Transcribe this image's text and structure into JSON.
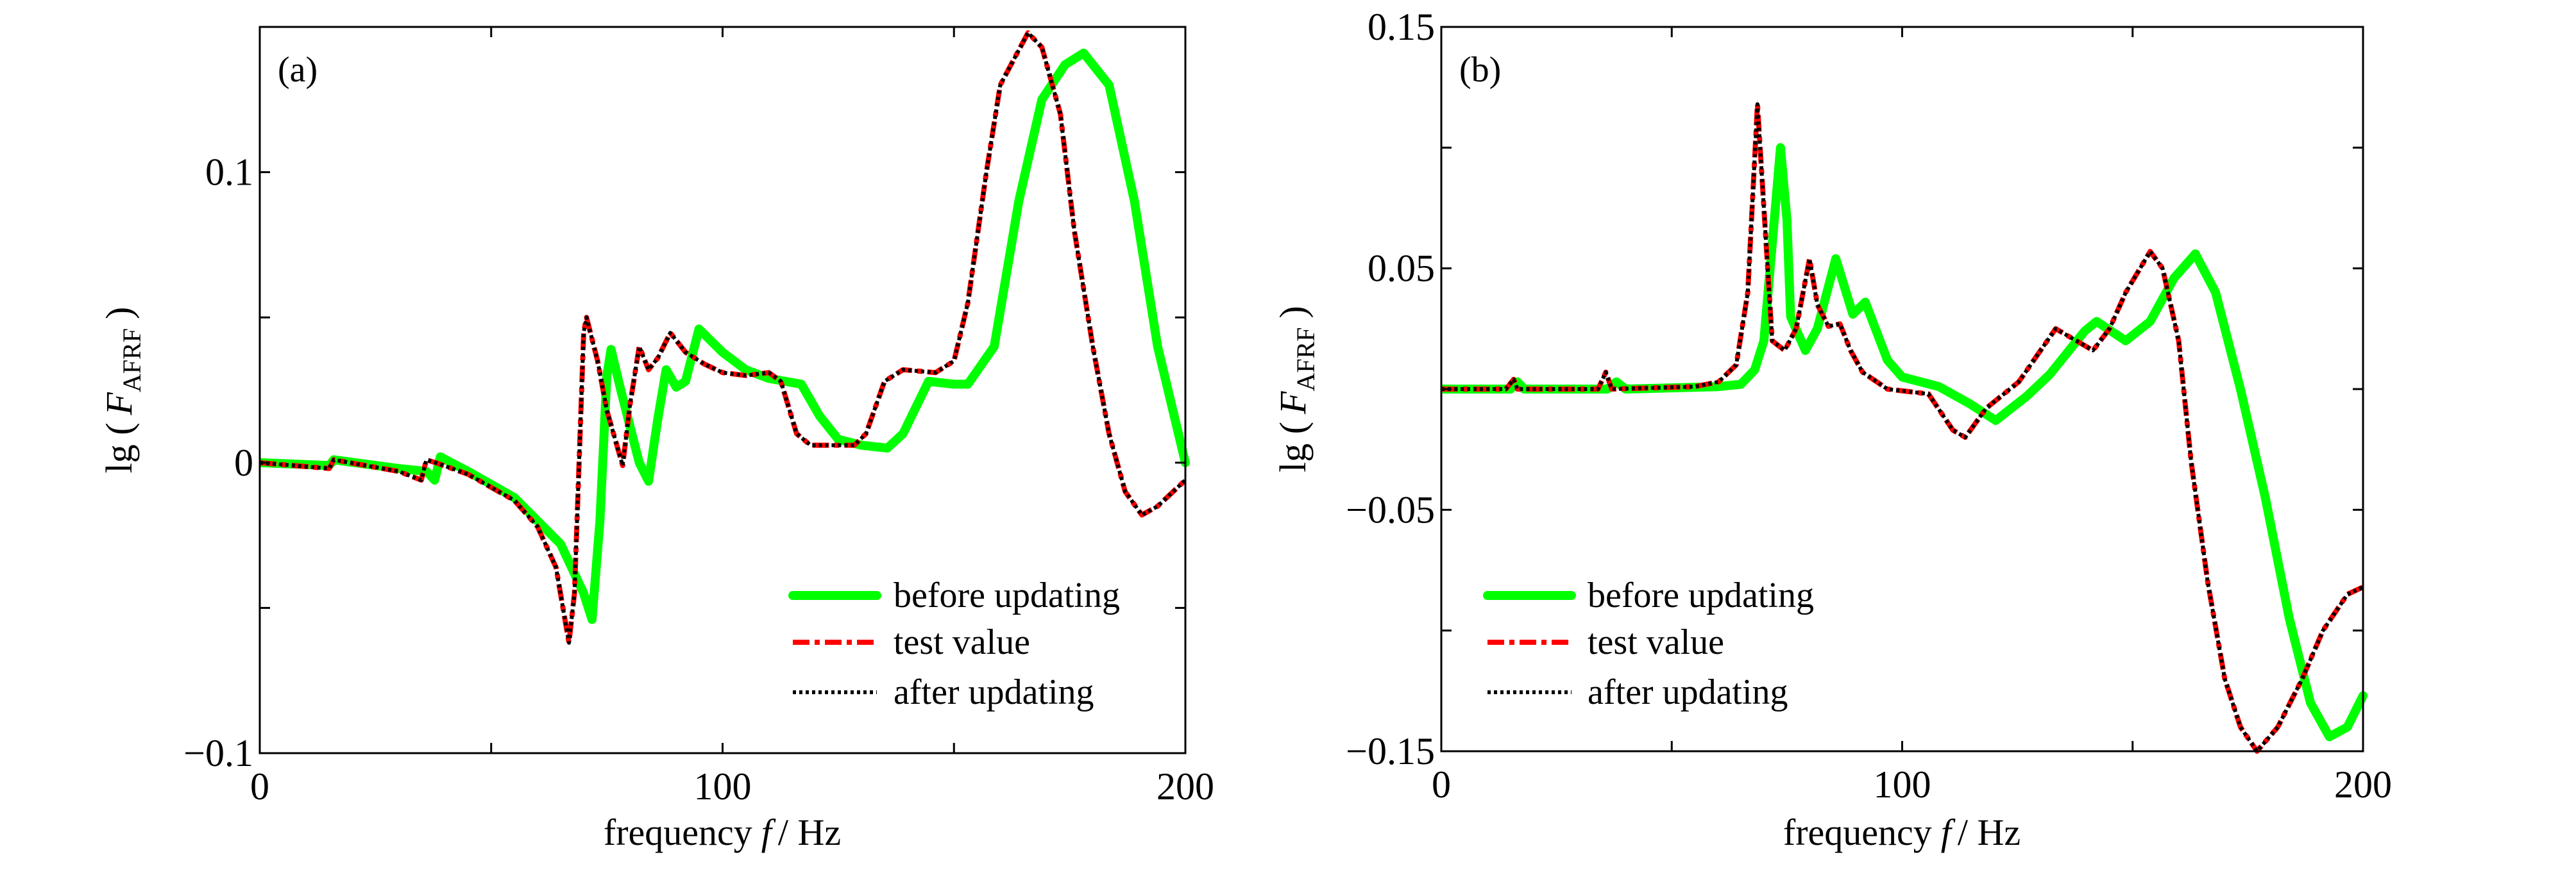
{
  "chart_data": [
    {
      "type": "line",
      "panel_label": "(a)",
      "xlabel": "frequency",
      "xlabel_var": "f",
      "xlabel_unit": "/ Hz",
      "ylabel_prefix": "lg (",
      "ylabel_var": "F",
      "ylabel_sub": "AFRF",
      "ylabel_suffix": ")",
      "xlim": [
        0,
        200
      ],
      "ylim": [
        -0.1,
        0.15
      ],
      "xticks": [
        0,
        50,
        100,
        150,
        200
      ],
      "xtick_labels": [
        "0",
        "",
        "100",
        "",
        "200"
      ],
      "yticks": [
        -0.1,
        -0.05,
        0,
        0.05,
        0.1
      ],
      "ytick_labels": [
        "−0.1",
        "",
        "0",
        "",
        "0.1"
      ],
      "grid": false,
      "legend_position": "bottom-right",
      "series": [
        {
          "name": "before updating",
          "color": "#00ff00",
          "style": "solid",
          "x": [
            0,
            15,
            16,
            30,
            36,
            37.8,
            39,
            45,
            55,
            65,
            70,
            71.8,
            73.5,
            75,
            75.9,
            78,
            82,
            84,
            86,
            87.8,
            90,
            92,
            94.9,
            100,
            105,
            110,
            117,
            121,
            125,
            130,
            135.6,
            139,
            144.5,
            150,
            153,
            158.7,
            164,
            169,
            174,
            178,
            183.5,
            189,
            194,
            200
          ],
          "y": [
            0,
            -0.001,
            0.001,
            -0.002,
            -0.003,
            -0.006,
            0.002,
            -0.003,
            -0.012,
            -0.028,
            -0.045,
            -0.054,
            -0.02,
            0.03,
            0.039,
            0.025,
            0.0,
            -0.0064,
            0.015,
            0.032,
            0.026,
            0.028,
            0.046,
            0.038,
            0.032,
            0.029,
            0.027,
            0.016,
            0.008,
            0.006,
            0.005,
            0.01,
            0.028,
            0.027,
            0.027,
            0.04,
            0.09,
            0.125,
            0.137,
            0.141,
            0.13,
            0.09,
            0.04,
            0.0
          ]
        },
        {
          "name": "test value",
          "color": "#ff0000",
          "style": "dashdot",
          "x": [
            0,
            15,
            16,
            30,
            34.9,
            36,
            38,
            45,
            55,
            60,
            64,
            66.8,
            68,
            69,
            70,
            70.6,
            73,
            75,
            78.4,
            80,
            82,
            84,
            86,
            88.7,
            92,
            96,
            100,
            105,
            110,
            112.6,
            116,
            119,
            128.5,
            131,
            135,
            139,
            146,
            150,
            153,
            157,
            160,
            166,
            169,
            173,
            176,
            180,
            183.5,
            187,
            190.6,
            194,
            200
          ],
          "y": [
            0,
            -0.002,
            0.001,
            -0.003,
            -0.006,
            0.001,
            0.0,
            -0.004,
            -0.013,
            -0.022,
            -0.036,
            -0.062,
            -0.045,
            0.0,
            0.045,
            0.05,
            0.035,
            0.018,
            -0.001,
            0.02,
            0.04,
            0.032,
            0.036,
            0.0447,
            0.038,
            0.034,
            0.031,
            0.03,
            0.031,
            0.028,
            0.01,
            0.006,
            0.006,
            0.01,
            0.028,
            0.032,
            0.031,
            0.035,
            0.055,
            0.1,
            0.13,
            0.148,
            0.143,
            0.12,
            0.08,
            0.04,
            0.01,
            -0.01,
            -0.018,
            -0.015,
            -0.006
          ]
        },
        {
          "name": "after updating",
          "color": "#000000",
          "style": "dotted",
          "x": [
            0,
            15,
            16,
            30,
            34.9,
            36,
            38,
            45,
            55,
            60,
            64,
            66.8,
            68,
            69,
            70,
            70.6,
            73,
            75,
            78.4,
            80,
            82,
            84,
            86,
            88.7,
            92,
            96,
            100,
            105,
            110,
            112.6,
            116,
            119,
            128.5,
            131,
            135,
            139,
            146,
            150,
            153,
            157,
            160,
            166,
            169,
            173,
            176,
            180,
            183.5,
            187,
            190.6,
            194,
            200
          ],
          "y": [
            0,
            -0.002,
            0.001,
            -0.003,
            -0.006,
            0.001,
            0.0,
            -0.004,
            -0.013,
            -0.022,
            -0.036,
            -0.062,
            -0.045,
            0.0,
            0.045,
            0.05,
            0.035,
            0.018,
            -0.001,
            0.02,
            0.04,
            0.032,
            0.036,
            0.0447,
            0.038,
            0.034,
            0.031,
            0.03,
            0.031,
            0.028,
            0.01,
            0.006,
            0.006,
            0.01,
            0.028,
            0.032,
            0.031,
            0.035,
            0.055,
            0.1,
            0.13,
            0.148,
            0.143,
            0.12,
            0.08,
            0.04,
            0.01,
            -0.01,
            -0.018,
            -0.015,
            -0.006
          ]
        }
      ]
    },
    {
      "type": "line",
      "panel_label": "(b)",
      "xlabel": "frequency",
      "xlabel_var": "f",
      "xlabel_unit": "/ Hz",
      "ylabel_prefix": "lg (",
      "ylabel_var": "F",
      "ylabel_sub": "AFRF",
      "ylabel_suffix": ")",
      "xlim": [
        0,
        200
      ],
      "ylim": [
        -0.15,
        0.15
      ],
      "xticks": [
        0,
        50,
        100,
        150,
        200
      ],
      "xtick_labels": [
        "0",
        "",
        "100",
        "",
        "200"
      ],
      "yticks": [
        -0.15,
        -0.1,
        -0.05,
        0,
        0.05,
        0.1,
        0.15
      ],
      "ytick_labels": [
        "−0.15",
        "",
        "−0.05",
        "",
        "0.05",
        "",
        "0.15"
      ],
      "grid": false,
      "legend_position": "bottom-left",
      "series": [
        {
          "name": "before updating",
          "color": "#00ff00",
          "style": "solid",
          "x": [
            0,
            15,
            16.5,
            18,
            36,
            38,
            40,
            60,
            65,
            68,
            70,
            71.8,
            73.6,
            75,
            75.8,
            79,
            81.6,
            85.6,
            89.3,
            92,
            96.8,
            100,
            108,
            114.6,
            120.3,
            127,
            132,
            139.6,
            142.2,
            148.5,
            153.8,
            159,
            163.6,
            168,
            173.4,
            178.8,
            184,
            188.6,
            192.7,
            196.6,
            200
          ],
          "y": [
            0,
            0,
            0.003,
            0,
            0,
            0.003,
            0,
            0.001,
            0.002,
            0.008,
            0.02,
            0.06,
            0.1,
            0.07,
            0.03,
            0.016,
            0.025,
            0.054,
            0.031,
            0.036,
            0.012,
            0.005,
            0.001,
            -0.006,
            -0.013,
            -0.003,
            0.006,
            0.024,
            0.028,
            0.02,
            0.028,
            0.046,
            0.056,
            0.04,
            0.0,
            -0.045,
            -0.095,
            -0.13,
            -0.144,
            -0.14,
            -0.127
          ]
        },
        {
          "name": "test value",
          "color": "#ff0000",
          "style": "dashdot",
          "x": [
            0,
            14,
            15.7,
            16.5,
            34,
            35.7,
            37,
            55,
            60.2,
            64,
            66.5,
            68.6,
            69.5,
            71.8,
            74.5,
            77,
            79.9,
            81.6,
            84,
            86.5,
            88.8,
            91.4,
            96.8,
            105.7,
            111,
            113.7,
            118.2,
            125.3,
            133.3,
            141.4,
            145,
            148.5,
            153.8,
            156.5,
            160,
            162.7,
            166.3,
            170,
            173.4,
            177,
            181.5,
            186.8,
            191.3,
            196.6,
            200
          ],
          "y": [
            0,
            0,
            0.004,
            0,
            0,
            0.007,
            0,
            0.001,
            0.003,
            0.01,
            0.04,
            0.118,
            0.09,
            0.02,
            0.016,
            0.025,
            0.054,
            0.035,
            0.026,
            0.027,
            0.016,
            0.007,
            0.0,
            -0.002,
            -0.017,
            -0.02,
            -0.008,
            0.003,
            0.025,
            0.016,
            0.025,
            0.04,
            0.057,
            0.05,
            0.02,
            -0.03,
            -0.08,
            -0.12,
            -0.14,
            -0.15,
            -0.14,
            -0.12,
            -0.1,
            -0.085,
            -0.082
          ]
        },
        {
          "name": "after updating",
          "color": "#000000",
          "style": "dotted",
          "x": [
            0,
            14,
            15.7,
            16.5,
            34,
            35.7,
            37,
            55,
            60.2,
            64,
            66.5,
            68.6,
            69.5,
            71.8,
            74.5,
            77,
            79.9,
            81.6,
            84,
            86.5,
            88.8,
            91.4,
            96.8,
            105.7,
            111,
            113.7,
            118.2,
            125.3,
            133.3,
            141.4,
            145,
            148.5,
            153.8,
            156.5,
            160,
            162.7,
            166.3,
            170,
            173.4,
            177,
            181.5,
            186.8,
            191.3,
            196.6,
            200
          ],
          "y": [
            0,
            0,
            0.004,
            0,
            0,
            0.007,
            0,
            0.001,
            0.003,
            0.01,
            0.04,
            0.118,
            0.09,
            0.02,
            0.016,
            0.025,
            0.054,
            0.035,
            0.026,
            0.027,
            0.016,
            0.007,
            0.0,
            -0.002,
            -0.017,
            -0.02,
            -0.008,
            0.003,
            0.025,
            0.016,
            0.025,
            0.04,
            0.057,
            0.05,
            0.02,
            -0.03,
            -0.08,
            -0.12,
            -0.14,
            -0.15,
            -0.14,
            -0.12,
            -0.1,
            -0.085,
            -0.082
          ]
        }
      ]
    }
  ]
}
